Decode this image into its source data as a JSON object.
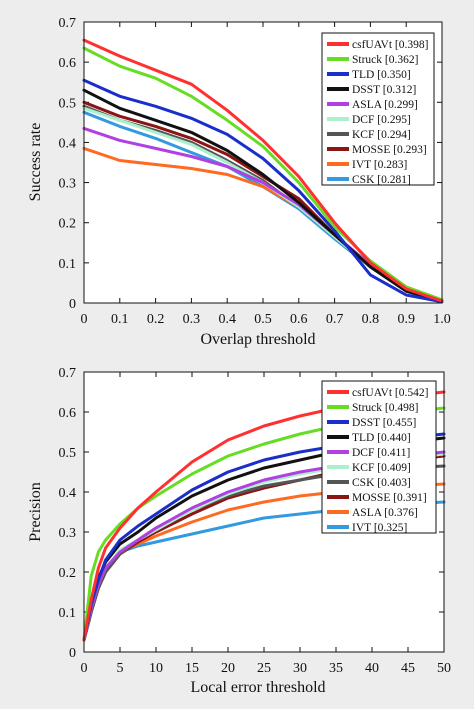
{
  "chart_data": [
    {
      "type": "line",
      "xlabel": "Overlap threshold",
      "ylabel": "Success rate",
      "xlim": [
        0,
        1
      ],
      "ylim": [
        0,
        0.7
      ],
      "xticks": [
        "0",
        "0.1",
        "0.2",
        "0.3",
        "0.4",
        "0.5",
        "0.6",
        "0.7",
        "0.8",
        "0.9",
        "1.0"
      ],
      "yticks": [
        "0",
        "0.1",
        "0.2",
        "0.3",
        "0.4",
        "0.5",
        "0.6",
        "0.7"
      ],
      "legend_position": "top-right",
      "x": [
        0,
        0.1,
        0.2,
        0.3,
        0.4,
        0.5,
        0.6,
        0.7,
        0.8,
        0.9,
        1.0
      ],
      "series": [
        {
          "name": "csfUAVt [0.398]",
          "color": "#ff3030",
          "values": [
            0.655,
            0.615,
            0.58,
            0.545,
            0.48,
            0.405,
            0.315,
            0.2,
            0.1,
            0.035,
            0.005
          ]
        },
        {
          "name": "Struck [0.362]",
          "color": "#66dd22",
          "values": [
            0.635,
            0.59,
            0.56,
            0.515,
            0.455,
            0.39,
            0.3,
            0.19,
            0.105,
            0.04,
            0.008
          ]
        },
        {
          "name": "TLD [0.350]",
          "color": "#1a2ecc",
          "values": [
            0.555,
            0.515,
            0.49,
            0.46,
            0.42,
            0.36,
            0.28,
            0.18,
            0.07,
            0.02,
            0.003
          ]
        },
        {
          "name": "DSST [0.312]",
          "color": "#111111",
          "values": [
            0.53,
            0.485,
            0.455,
            0.425,
            0.38,
            0.32,
            0.25,
            0.17,
            0.09,
            0.03,
            0.004
          ]
        },
        {
          "name": "ASLA [0.299]",
          "color": "#b040e0",
          "values": [
            0.435,
            0.405,
            0.385,
            0.365,
            0.34,
            0.3,
            0.245,
            0.17,
            0.095,
            0.035,
            0.005
          ]
        },
        {
          "name": "DCF [0.295]",
          "color": "#aaf0cc",
          "values": [
            0.485,
            0.455,
            0.425,
            0.395,
            0.35,
            0.3,
            0.24,
            0.165,
            0.09,
            0.035,
            0.004
          ]
        },
        {
          "name": "KCF [0.294]",
          "color": "#555555",
          "values": [
            0.49,
            0.455,
            0.43,
            0.4,
            0.355,
            0.305,
            0.24,
            0.165,
            0.09,
            0.03,
            0.004
          ]
        },
        {
          "name": "MOSSE [0.293]",
          "color": "#8a1515",
          "values": [
            0.5,
            0.465,
            0.44,
            0.41,
            0.37,
            0.315,
            0.26,
            0.17,
            0.09,
            0.03,
            0.004
          ]
        },
        {
          "name": "IVT [0.283]",
          "color": "#ff6a22",
          "values": [
            0.385,
            0.355,
            0.345,
            0.335,
            0.32,
            0.29,
            0.24,
            0.165,
            0.095,
            0.035,
            0.005
          ]
        },
        {
          "name": "CSK [0.281]",
          "color": "#3399e0",
          "values": [
            0.475,
            0.44,
            0.41,
            0.375,
            0.34,
            0.29,
            0.235,
            0.16,
            0.09,
            0.03,
            0.004
          ]
        }
      ]
    },
    {
      "type": "line",
      "xlabel": "Local error threshold",
      "ylabel": "Precision",
      "xlim": [
        0,
        50
      ],
      "ylim": [
        0,
        0.7
      ],
      "xticks": [
        "0",
        "5",
        "10",
        "15",
        "20",
        "25",
        "30",
        "35",
        "40",
        "45",
        "50"
      ],
      "yticks": [
        "0",
        "0.1",
        "0.2",
        "0.3",
        "0.4",
        "0.5",
        "0.6",
        "0.7"
      ],
      "legend_position": "top-right",
      "x": [
        0,
        1,
        2,
        3,
        5,
        7.5,
        10,
        15,
        20,
        25,
        30,
        35,
        40,
        45,
        50
      ],
      "series": [
        {
          "name": "csfUAVt [0.542]",
          "color": "#ff3030",
          "values": [
            0.03,
            0.13,
            0.21,
            0.26,
            0.31,
            0.36,
            0.4,
            0.475,
            0.53,
            0.565,
            0.59,
            0.61,
            0.63,
            0.64,
            0.65
          ]
        },
        {
          "name": "Struck [0.498]",
          "color": "#66dd22",
          "values": [
            0.03,
            0.19,
            0.25,
            0.28,
            0.32,
            0.36,
            0.39,
            0.445,
            0.49,
            0.52,
            0.545,
            0.565,
            0.585,
            0.6,
            0.61
          ]
        },
        {
          "name": "DSST [0.455]",
          "color": "#1a2ecc",
          "values": [
            0.03,
            0.12,
            0.18,
            0.23,
            0.28,
            0.315,
            0.345,
            0.405,
            0.45,
            0.48,
            0.5,
            0.515,
            0.525,
            0.535,
            0.545
          ]
        },
        {
          "name": "TLD [0.440]",
          "color": "#111111",
          "values": [
            0.03,
            0.12,
            0.185,
            0.225,
            0.27,
            0.3,
            0.335,
            0.39,
            0.43,
            0.46,
            0.48,
            0.5,
            0.515,
            0.525,
            0.535
          ]
        },
        {
          "name": "DCF [0.411]",
          "color": "#b040e0",
          "values": [
            0.03,
            0.11,
            0.17,
            0.21,
            0.25,
            0.28,
            0.31,
            0.36,
            0.4,
            0.43,
            0.45,
            0.465,
            0.48,
            0.49,
            0.5
          ]
        },
        {
          "name": "KCF [0.409]",
          "color": "#aaf0cc",
          "values": [
            0.03,
            0.11,
            0.17,
            0.21,
            0.255,
            0.28,
            0.305,
            0.355,
            0.395,
            0.425,
            0.445,
            0.46,
            0.475,
            0.485,
            0.495
          ]
        },
        {
          "name": "CSK [0.403]",
          "color": "#555555",
          "values": [
            0.03,
            0.1,
            0.16,
            0.2,
            0.245,
            0.28,
            0.31,
            0.355,
            0.39,
            0.415,
            0.43,
            0.445,
            0.455,
            0.46,
            0.465
          ]
        },
        {
          "name": "MOSSE [0.391]",
          "color": "#8a1515",
          "values": [
            0.03,
            0.1,
            0.16,
            0.2,
            0.245,
            0.275,
            0.3,
            0.345,
            0.385,
            0.41,
            0.43,
            0.45,
            0.465,
            0.48,
            0.49
          ]
        },
        {
          "name": "ASLA [0.376]",
          "color": "#ff6a22",
          "values": [
            0.03,
            0.11,
            0.17,
            0.21,
            0.25,
            0.27,
            0.29,
            0.325,
            0.355,
            0.375,
            0.39,
            0.4,
            0.41,
            0.415,
            0.42
          ]
        },
        {
          "name": "IVT [0.325]",
          "color": "#3399e0",
          "values": [
            0.03,
            0.1,
            0.16,
            0.21,
            0.25,
            0.265,
            0.275,
            0.295,
            0.315,
            0.335,
            0.345,
            0.355,
            0.365,
            0.37,
            0.375
          ]
        }
      ]
    }
  ]
}
